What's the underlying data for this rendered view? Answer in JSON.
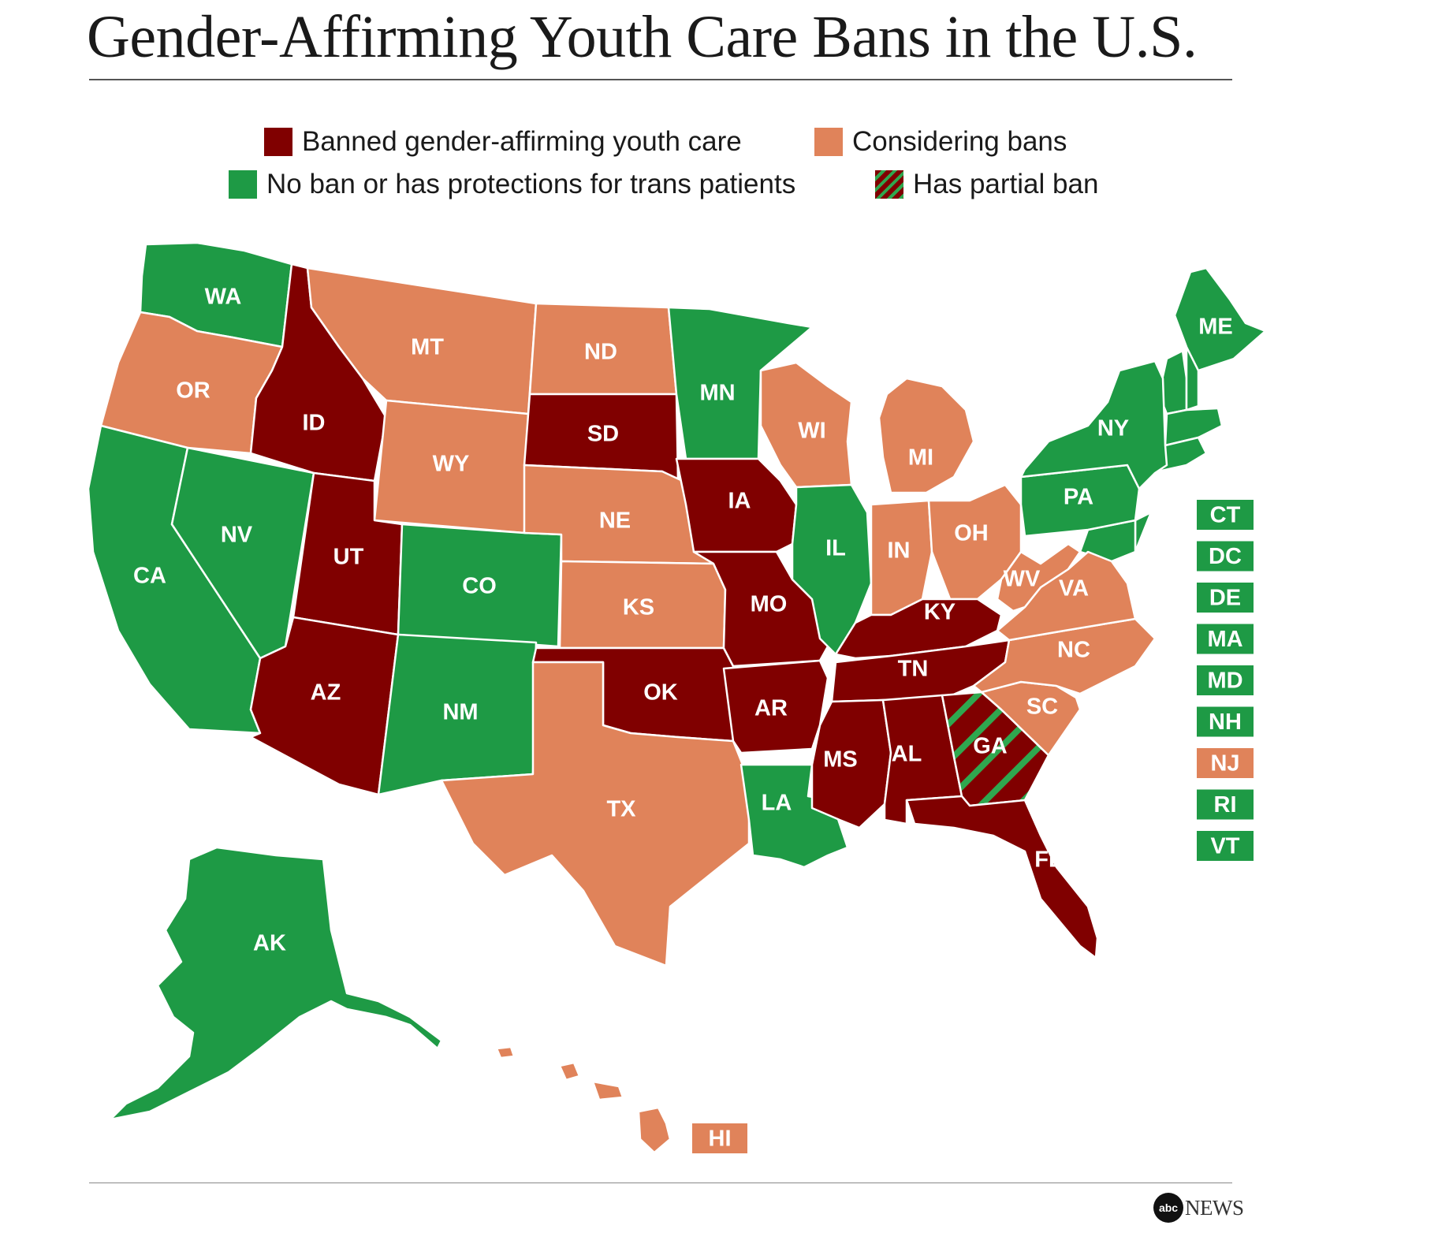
{
  "title": "Gender-Affirming Youth Care Bans in the U.S.",
  "colors": {
    "banned": "#800000",
    "considering": "#e0835a",
    "none": "#1e9a45",
    "partial_stripe": "#2fa84f"
  },
  "legend": {
    "banned": "Banned gender-affirming youth care",
    "considering": "Considering bans",
    "none": "No ban or has protections for trans patients",
    "partial": "Has partial ban"
  },
  "states": [
    {
      "code": "WA",
      "status": "none"
    },
    {
      "code": "OR",
      "status": "considering"
    },
    {
      "code": "CA",
      "status": "none"
    },
    {
      "code": "NV",
      "status": "none"
    },
    {
      "code": "ID",
      "status": "banned"
    },
    {
      "code": "MT",
      "status": "considering"
    },
    {
      "code": "WY",
      "status": "considering"
    },
    {
      "code": "UT",
      "status": "banned"
    },
    {
      "code": "CO",
      "status": "none"
    },
    {
      "code": "AZ",
      "status": "banned"
    },
    {
      "code": "NM",
      "status": "none"
    },
    {
      "code": "ND",
      "status": "considering"
    },
    {
      "code": "SD",
      "status": "banned"
    },
    {
      "code": "NE",
      "status": "considering"
    },
    {
      "code": "KS",
      "status": "considering"
    },
    {
      "code": "OK",
      "status": "banned"
    },
    {
      "code": "TX",
      "status": "considering"
    },
    {
      "code": "MN",
      "status": "none"
    },
    {
      "code": "IA",
      "status": "banned"
    },
    {
      "code": "MO",
      "status": "banned"
    },
    {
      "code": "AR",
      "status": "banned"
    },
    {
      "code": "LA",
      "status": "none"
    },
    {
      "code": "WI",
      "status": "considering"
    },
    {
      "code": "IL",
      "status": "none"
    },
    {
      "code": "MI",
      "status": "considering"
    },
    {
      "code": "IN",
      "status": "considering"
    },
    {
      "code": "OH",
      "status": "considering"
    },
    {
      "code": "KY",
      "status": "banned"
    },
    {
      "code": "TN",
      "status": "banned"
    },
    {
      "code": "MS",
      "status": "banned"
    },
    {
      "code": "AL",
      "status": "banned"
    },
    {
      "code": "GA",
      "status": "partial"
    },
    {
      "code": "FL",
      "status": "banned"
    },
    {
      "code": "SC",
      "status": "considering"
    },
    {
      "code": "NC",
      "status": "considering"
    },
    {
      "code": "VA",
      "status": "considering"
    },
    {
      "code": "WV",
      "status": "considering"
    },
    {
      "code": "PA",
      "status": "none"
    },
    {
      "code": "NY",
      "status": "none"
    },
    {
      "code": "ME",
      "status": "none"
    },
    {
      "code": "AK",
      "status": "none"
    },
    {
      "code": "HI",
      "status": "considering"
    }
  ],
  "small_states": [
    {
      "code": "CT",
      "status": "none"
    },
    {
      "code": "DC",
      "status": "none"
    },
    {
      "code": "DE",
      "status": "none"
    },
    {
      "code": "MA",
      "status": "none"
    },
    {
      "code": "MD",
      "status": "none"
    },
    {
      "code": "NH",
      "status": "none"
    },
    {
      "code": "NJ",
      "status": "considering"
    },
    {
      "code": "RI",
      "status": "none"
    },
    {
      "code": "VT",
      "status": "none"
    }
  ],
  "source_logo": {
    "mark": "abc",
    "text": "NEWS"
  }
}
